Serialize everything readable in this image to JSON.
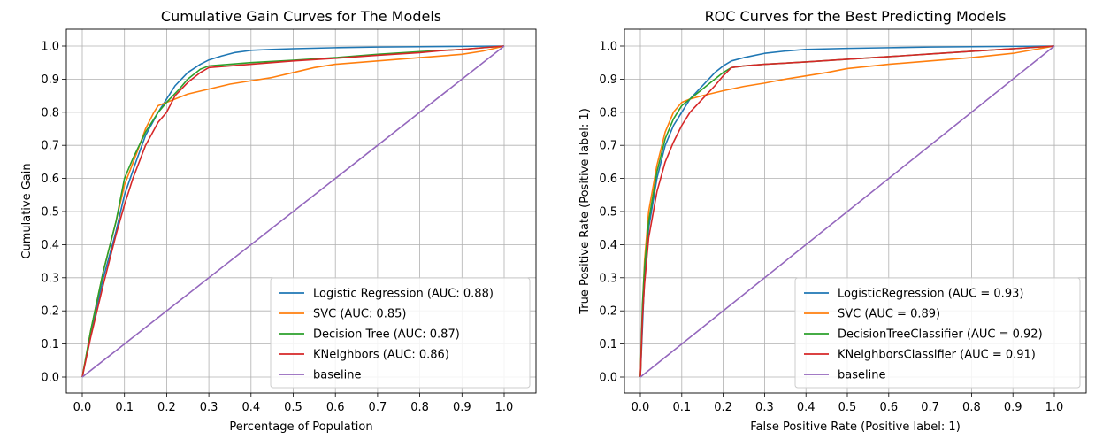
{
  "chart_data": [
    {
      "type": "line",
      "title": "Cumulative Gain Curves for The Models",
      "xlabel": "Percentage of Population",
      "ylabel": "Cumulative Gain",
      "xlim": [
        0,
        1
      ],
      "ylim": [
        0,
        1
      ],
      "xticks": [
        "0.0",
        "0.1",
        "0.2",
        "0.3",
        "0.4",
        "0.5",
        "0.6",
        "0.7",
        "0.8",
        "0.9",
        "1.0"
      ],
      "yticks": [
        "0.0",
        "0.1",
        "0.2",
        "0.3",
        "0.4",
        "0.5",
        "0.6",
        "0.7",
        "0.8",
        "0.9",
        "1.0"
      ],
      "grid": true,
      "legend_position": "lower right",
      "series": [
        {
          "name": "Logistic Regression (AUC: 0.88)",
          "color": "#1f77b4",
          "x": [
            0,
            0.02,
            0.05,
            0.08,
            0.1,
            0.13,
            0.15,
            0.18,
            0.2,
            0.22,
            0.25,
            0.28,
            0.3,
            0.33,
            0.36,
            0.4,
            0.45,
            0.5,
            0.6,
            0.7,
            0.8,
            0.9,
            1.0
          ],
          "y": [
            0,
            0.13,
            0.3,
            0.44,
            0.55,
            0.66,
            0.73,
            0.8,
            0.84,
            0.88,
            0.92,
            0.945,
            0.958,
            0.97,
            0.98,
            0.987,
            0.99,
            0.992,
            0.995,
            0.997,
            0.998,
            0.999,
            1.0
          ]
        },
        {
          "name": "SVC (AUC: 0.85)",
          "color": "#ff7f0e",
          "x": [
            0,
            0.02,
            0.05,
            0.08,
            0.1,
            0.13,
            0.15,
            0.17,
            0.18,
            0.2,
            0.22,
            0.25,
            0.3,
            0.35,
            0.4,
            0.45,
            0.5,
            0.55,
            0.6,
            0.7,
            0.8,
            0.9,
            0.95,
            1.0
          ],
          "y": [
            0,
            0.14,
            0.32,
            0.47,
            0.58,
            0.68,
            0.75,
            0.8,
            0.82,
            0.83,
            0.84,
            0.855,
            0.87,
            0.885,
            0.895,
            0.905,
            0.92,
            0.935,
            0.945,
            0.955,
            0.965,
            0.975,
            0.985,
            1.0
          ]
        },
        {
          "name": "Decision Tree (AUC: 0.87)",
          "color": "#2ca02c",
          "x": [
            0,
            0.02,
            0.05,
            0.08,
            0.1,
            0.12,
            0.15,
            0.18,
            0.2,
            0.23,
            0.25,
            0.28,
            0.3,
            0.35,
            0.4,
            0.5,
            0.6,
            0.7,
            0.8,
            0.9,
            1.0
          ],
          "y": [
            0,
            0.14,
            0.32,
            0.47,
            0.6,
            0.66,
            0.74,
            0.8,
            0.83,
            0.87,
            0.9,
            0.93,
            0.94,
            0.945,
            0.95,
            0.957,
            0.965,
            0.975,
            0.983,
            0.99,
            1.0
          ]
        },
        {
          "name": "KNeighbors (AUC: 0.86)",
          "color": "#d62728",
          "x": [
            0,
            0.02,
            0.05,
            0.08,
            0.1,
            0.12,
            0.15,
            0.18,
            0.2,
            0.22,
            0.25,
            0.28,
            0.3,
            0.35,
            0.4,
            0.45,
            0.5,
            0.6,
            0.7,
            0.8,
            0.85,
            0.9,
            1.0
          ],
          "y": [
            0,
            0.12,
            0.28,
            0.43,
            0.52,
            0.6,
            0.7,
            0.77,
            0.8,
            0.85,
            0.89,
            0.92,
            0.935,
            0.94,
            0.945,
            0.95,
            0.955,
            0.963,
            0.972,
            0.98,
            0.986,
            0.99,
            1.0
          ]
        },
        {
          "name": "baseline",
          "color": "#9467bd",
          "x": [
            0,
            1
          ],
          "y": [
            0,
            1
          ]
        }
      ]
    },
    {
      "type": "line",
      "title": "ROC Curves for the Best Predicting Models",
      "xlabel": "False Positive Rate (Positive label: 1)",
      "ylabel": "True Positive Rate (Positive label: 1)",
      "xlim": [
        0,
        1
      ],
      "ylim": [
        0,
        1
      ],
      "xticks": [
        "0.0",
        "0.1",
        "0.2",
        "0.3",
        "0.4",
        "0.5",
        "0.6",
        "0.7",
        "0.8",
        "0.9",
        "1.0"
      ],
      "yticks": [
        "0.0",
        "0.1",
        "0.2",
        "0.3",
        "0.4",
        "0.5",
        "0.6",
        "0.7",
        "0.8",
        "0.9",
        "1.0"
      ],
      "grid": true,
      "legend_position": "lower right",
      "series": [
        {
          "name": "LogisticRegression (AUC = 0.93)",
          "color": "#1f77b4",
          "x": [
            0,
            0.01,
            0.02,
            0.04,
            0.06,
            0.08,
            0.1,
            0.12,
            0.15,
            0.18,
            0.2,
            0.22,
            0.25,
            0.3,
            0.35,
            0.4,
            0.5,
            0.6,
            0.7,
            0.8,
            0.9,
            1.0
          ],
          "y": [
            0,
            0.3,
            0.45,
            0.6,
            0.7,
            0.76,
            0.8,
            0.84,
            0.88,
            0.92,
            0.94,
            0.955,
            0.965,
            0.978,
            0.985,
            0.99,
            0.993,
            0.995,
            0.997,
            0.998,
            0.999,
            1.0
          ]
        },
        {
          "name": "SVC (AUC = 0.89)",
          "color": "#ff7f0e",
          "x": [
            0,
            0.005,
            0.01,
            0.02,
            0.04,
            0.06,
            0.08,
            0.1,
            0.12,
            0.15,
            0.2,
            0.25,
            0.3,
            0.35,
            0.4,
            0.45,
            0.5,
            0.6,
            0.7,
            0.8,
            0.9,
            1.0
          ],
          "y": [
            0,
            0.2,
            0.35,
            0.5,
            0.64,
            0.74,
            0.8,
            0.83,
            0.84,
            0.85,
            0.865,
            0.878,
            0.888,
            0.9,
            0.91,
            0.92,
            0.932,
            0.945,
            0.955,
            0.965,
            0.978,
            1.0
          ]
        },
        {
          "name": "DecisionTreeClassifier (AUC = 0.92)",
          "color": "#2ca02c",
          "x": [
            0,
            0.005,
            0.01,
            0.02,
            0.04,
            0.06,
            0.08,
            0.1,
            0.12,
            0.15,
            0.18,
            0.2,
            0.22,
            0.25,
            0.3,
            0.4,
            0.5,
            0.6,
            0.7,
            0.8,
            0.9,
            1.0
          ],
          "y": [
            0,
            0.22,
            0.33,
            0.47,
            0.62,
            0.72,
            0.78,
            0.82,
            0.84,
            0.87,
            0.9,
            0.92,
            0.935,
            0.94,
            0.945,
            0.952,
            0.96,
            0.968,
            0.976,
            0.984,
            0.992,
            1.0
          ]
        },
        {
          "name": "KNeighborsClassifier (AUC = 0.91)",
          "color": "#d62728",
          "x": [
            0,
            0.005,
            0.01,
            0.02,
            0.04,
            0.06,
            0.08,
            0.1,
            0.12,
            0.15,
            0.18,
            0.2,
            0.22,
            0.25,
            0.3,
            0.4,
            0.5,
            0.6,
            0.7,
            0.8,
            0.9,
            1.0
          ],
          "y": [
            0,
            0.18,
            0.28,
            0.42,
            0.56,
            0.65,
            0.71,
            0.76,
            0.8,
            0.84,
            0.88,
            0.91,
            0.935,
            0.94,
            0.945,
            0.952,
            0.96,
            0.968,
            0.976,
            0.984,
            0.992,
            1.0
          ]
        },
        {
          "name": "baseline",
          "color": "#9467bd",
          "x": [
            0,
            1
          ],
          "y": [
            0,
            1
          ]
        }
      ]
    }
  ]
}
